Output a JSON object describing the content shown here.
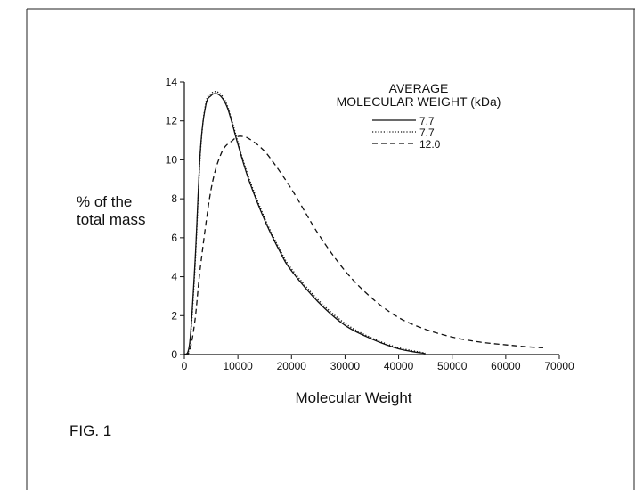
{
  "figure": {
    "caption": "FIG. 1"
  },
  "chart_data": {
    "type": "line",
    "xlabel": "Molecular Weight",
    "ylabel_line1": "% of the",
    "ylabel_line2": "total mass",
    "xlim": [
      0,
      70000
    ],
    "ylim": [
      0,
      14
    ],
    "x_ticks": [
      "0",
      "10000",
      "20000",
      "30000",
      "40000",
      "50000",
      "60000",
      "70000"
    ],
    "y_ticks": [
      "0",
      "2",
      "4",
      "6",
      "8",
      "10",
      "12",
      "14"
    ],
    "grid": false,
    "legend": {
      "title_line1": "AVERAGE",
      "title_line2": "MOLECULAR WEIGHT (kDa)",
      "placement": "top-right"
    },
    "series": [
      {
        "name": "7.7",
        "style": "solid",
        "color": "#111111",
        "x": [
          0,
          1000,
          2000,
          3000,
          4000,
          5000,
          6000,
          7000,
          8000,
          9000,
          10000,
          12000,
          15000,
          18000,
          20000,
          25000,
          30000,
          35000,
          40000,
          45000
        ],
        "y": [
          0,
          0.6,
          4.8,
          10.5,
          12.8,
          13.3,
          13.4,
          13.2,
          12.7,
          11.8,
          10.8,
          9.0,
          6.9,
          5.2,
          4.3,
          2.7,
          1.5,
          0.8,
          0.3,
          0.05
        ]
      },
      {
        "name": "7.7",
        "style": "dotted",
        "color": "#111111",
        "x": [
          0,
          1000,
          2000,
          3000,
          4000,
          5000,
          6000,
          7000,
          8000,
          9000,
          10000,
          12000,
          15000,
          18000,
          20000,
          25000,
          30000,
          35000,
          40000,
          45000
        ],
        "y": [
          0,
          0.5,
          4.6,
          10.4,
          12.9,
          13.4,
          13.5,
          13.3,
          12.8,
          11.9,
          10.9,
          9.1,
          7.0,
          5.3,
          4.4,
          2.8,
          1.6,
          0.85,
          0.35,
          0.08
        ]
      },
      {
        "name": "12.0",
        "style": "dashed",
        "color": "#111111",
        "x": [
          0,
          1000,
          2000,
          3000,
          5000,
          7000,
          9000,
          10000,
          11000,
          12000,
          14000,
          16000,
          20000,
          25000,
          30000,
          35000,
          40000,
          45000,
          50000,
          55000,
          60000,
          65000,
          67000
        ],
        "y": [
          0,
          0.2,
          1.8,
          4.5,
          8.5,
          10.4,
          11.0,
          11.2,
          11.2,
          11.1,
          10.7,
          10.1,
          8.5,
          6.2,
          4.3,
          2.9,
          1.9,
          1.3,
          0.9,
          0.65,
          0.5,
          0.38,
          0.35
        ]
      }
    ]
  }
}
